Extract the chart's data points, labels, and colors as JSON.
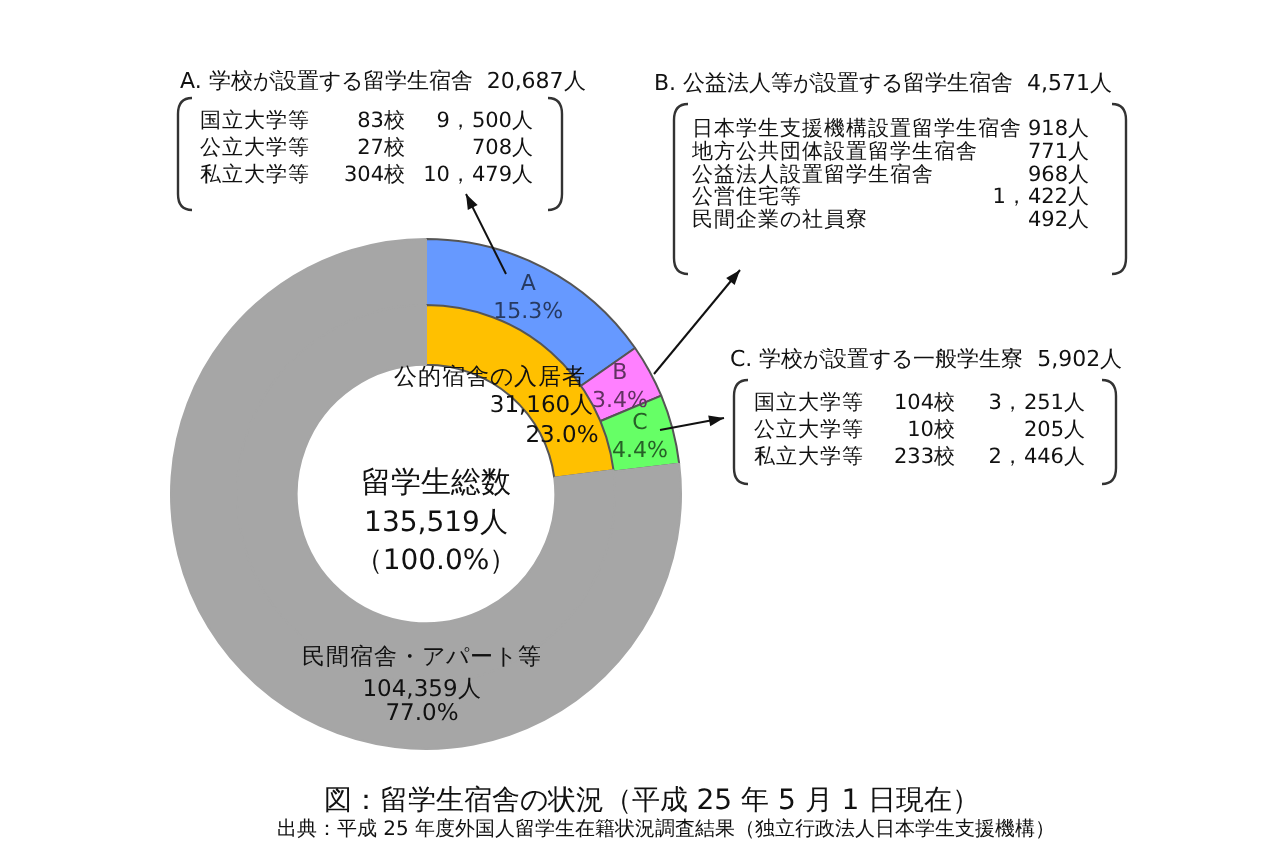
{
  "chart_data": [
    {
      "type": "donut",
      "title": "図：留学生宿舎の状況（平成 25 年 5 月 1 日現在）",
      "categories": [
        "A",
        "B",
        "C",
        null
      ],
      "values": [
        15.3,
        3.4,
        4.4,
        76.9
      ],
      "colors": [
        "#6699ff",
        "#ff80ff",
        "#66ff66",
        "#a6a6a6"
      ],
      "value_labels": [
        "15.3%",
        "3.4%",
        "4.4%",
        null
      ],
      "annotations": [
        "留学生総数",
        "135,519人",
        "（100.0%）",
        "A. 学校が設置する留学生宿舎  20,687人",
        "国立大学等",
        "83校",
        "9，500人",
        "公立大学等",
        "27校",
        "708人",
        "私立大学等",
        "304校",
        "10，479人",
        "B. 公益法人等が設置する留学生宿舎  4,571人",
        "日本学生支援機構設置留学生宿舎",
        "918人",
        "地方公共団体設置留学生宿舎",
        "771人",
        "公益法人設置留学生宿舎",
        "968人",
        "公営住宅等",
        "1，422人",
        "民間企業の社員寮",
        "492人",
        "C. 学校が設置する一般学生寮  5,902人",
        "国立大学等",
        "104校",
        "3，251人",
        "公立大学等",
        "10校",
        "205人",
        "私立大学等",
        "233校",
        "2，446人",
        "出典：平成 25 年度外国人留学生在籍状況調査結果（独立行政法人日本学生支援機構）"
      ]
    },
    {
      "type": "donut",
      "categories": [
        "公的宿舎の入居者",
        "民間宿舎・アパート等"
      ],
      "values": [
        31160,
        104359
      ],
      "colors": [
        "#ffc000",
        "#a6a6a6"
      ],
      "value_labels": [
        "31,160人\n23.0%",
        "104,359人\n77.0%"
      ]
    }
  ]
}
